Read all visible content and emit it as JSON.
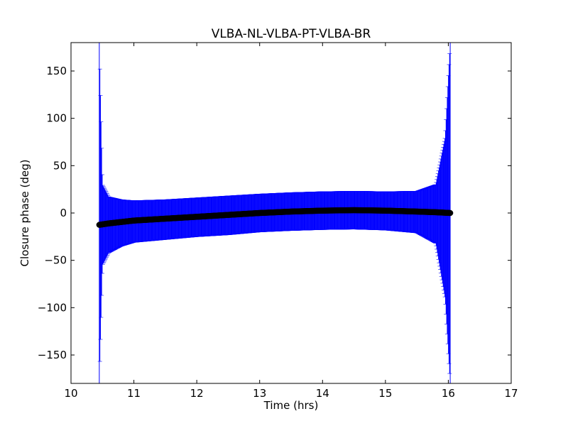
{
  "chart_data": {
    "type": "scatter",
    "title": "VLBA-NL-VLBA-PT-VLBA-BR",
    "xlabel": "Time (hrs)",
    "ylabel": "Closure phase (deg)",
    "xlim": [
      10,
      17
    ],
    "ylim": [
      -180,
      180
    ],
    "xticks": [
      10,
      11,
      12,
      13,
      14,
      15,
      16,
      17
    ],
    "xtick_labels": [
      "10",
      "11",
      "12",
      "13",
      "14",
      "15",
      "16",
      "17"
    ],
    "yticks": [
      -150,
      -100,
      -50,
      0,
      50,
      100,
      150
    ],
    "ytick_labels": [
      "−150",
      "−100",
      "−50",
      "0",
      "50",
      "100",
      "150"
    ],
    "grid": false,
    "legend": "none",
    "series": [
      {
        "marker": "circle",
        "color": "#000000",
        "errorbar_color": "#0000ff",
        "x": [
          10.45,
          10.5,
          10.6,
          10.8,
          11.0,
          11.5,
          12.0,
          12.5,
          13.0,
          13.5,
          14.0,
          14.5,
          15.0,
          15.5,
          15.8,
          15.95,
          16.03
        ],
        "y": [
          -12.5,
          -12.0,
          -11.0,
          -9.5,
          -8.0,
          -6.0,
          -4.0,
          -2.0,
          0.0,
          1.5,
          2.5,
          3.0,
          2.5,
          1.5,
          0.8,
          0.3,
          0.0
        ],
        "y_upper": [
          180,
          30,
          17,
          14,
          13,
          14,
          16,
          18,
          20,
          21.5,
          22.5,
          23,
          22.5,
          23,
          30,
          80,
          180
        ],
        "y_lower": [
          -180,
          -55,
          -42,
          -35,
          -31,
          -28,
          -25,
          -23,
          -20,
          -18.5,
          -17.5,
          -17,
          -18,
          -21,
          -32,
          -90,
          -180
        ]
      }
    ]
  }
}
